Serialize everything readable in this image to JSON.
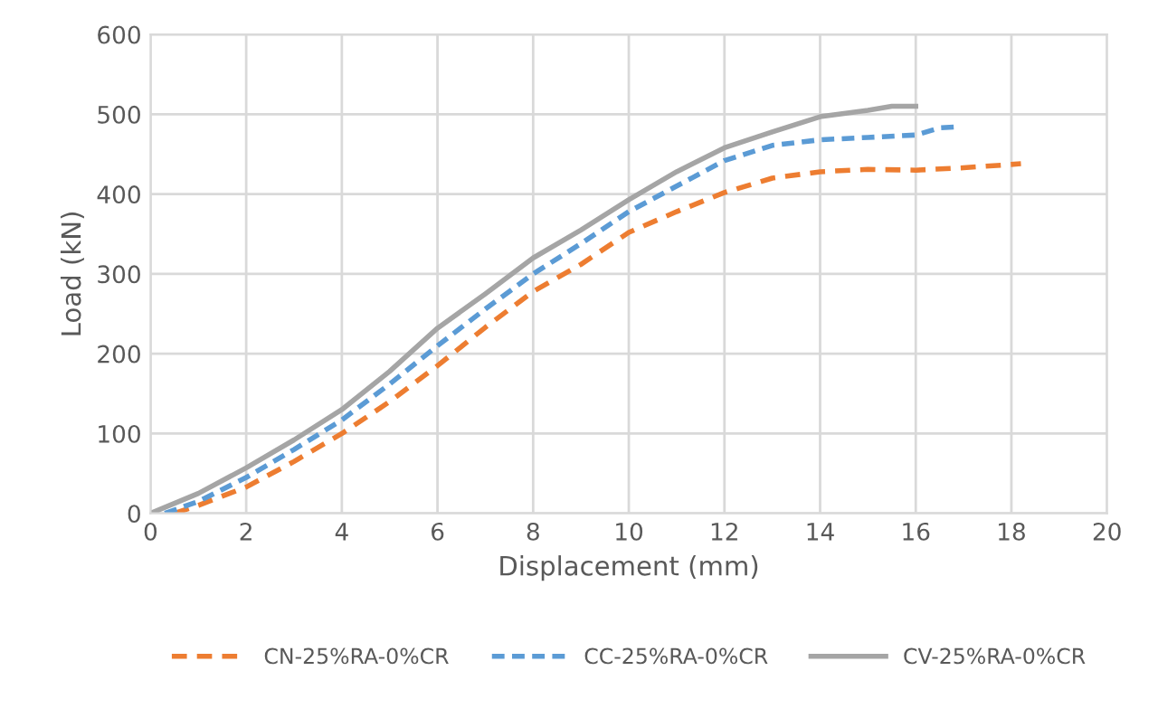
{
  "chart_data": {
    "type": "line",
    "xlabel": "Displacement (mm)",
    "ylabel": "Load (kN)",
    "xlim": [
      0,
      20
    ],
    "ylim": [
      0,
      600
    ],
    "xticks": [
      0,
      2,
      4,
      6,
      8,
      10,
      12,
      14,
      16,
      18,
      20
    ],
    "yticks": [
      0,
      100,
      200,
      300,
      400,
      500,
      600
    ],
    "grid": true,
    "legend": "bottom",
    "marker": "none",
    "series": [
      {
        "name": "CN-25%RA-0%CR",
        "color": "#ed7d31",
        "line_style": "dashed",
        "x": [
          0.5,
          1,
          2,
          3,
          4,
          5,
          6,
          7,
          8,
          9,
          10,
          11,
          12,
          13,
          14,
          15,
          16,
          17,
          18.2
        ],
        "values": [
          0,
          10,
          33,
          65,
          100,
          140,
          185,
          233,
          278,
          312,
          352,
          378,
          402,
          420,
          428,
          431,
          430,
          433,
          438
        ]
      },
      {
        "name": "CC-25%RA-0%CR",
        "color": "#5b9bd5",
        "line_style": "dotted",
        "x": [
          0.3,
          1,
          2,
          3,
          4,
          5,
          6,
          7,
          8,
          9,
          10,
          11,
          12,
          13,
          14,
          15,
          16,
          16.5,
          16.8
        ],
        "values": [
          0,
          15,
          45,
          80,
          117,
          162,
          210,
          256,
          300,
          338,
          378,
          410,
          442,
          461,
          468,
          471,
          474,
          483,
          484
        ]
      },
      {
        "name": "CV-25%RA-0%CR",
        "color": "#a5a5a5",
        "line_style": "solid",
        "x": [
          0,
          1,
          2,
          3,
          4,
          5,
          6,
          7,
          8,
          9,
          10,
          11,
          12,
          13,
          14,
          15,
          15.5,
          16
        ],
        "values": [
          0,
          25,
          57,
          92,
          130,
          178,
          232,
          275,
          320,
          355,
          393,
          428,
          458,
          478,
          497,
          505,
          510,
          510
        ]
      }
    ]
  }
}
